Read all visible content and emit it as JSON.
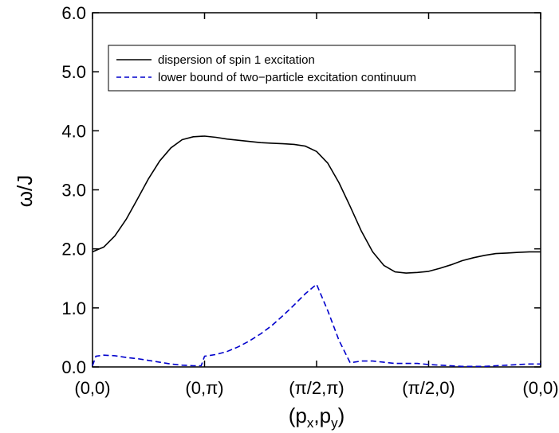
{
  "chart_data": {
    "type": "line",
    "xlabel_main": "(p",
    "xlabel_sub1": "x",
    "xlabel_mid": ",p",
    "xlabel_sub2": "y",
    "xlabel_end": ")",
    "ylabel": "ω/J",
    "x_ticks": [
      "(0,0)",
      "(0,π)",
      "(π/2,π)",
      "(π/2,0)",
      "(0,0)"
    ],
    "y_ticks": [
      "0.0",
      "1.0",
      "2.0",
      "3.0",
      "4.0",
      "5.0",
      "6.0"
    ],
    "xlim": [
      0,
      4
    ],
    "ylim": [
      0,
      6
    ],
    "legend_position": "top-left",
    "series": [
      {
        "name": "dispersion of  spin 1 excitation",
        "color": "#000000",
        "style": "solid",
        "x": [
          0,
          0.1,
          0.2,
          0.3,
          0.4,
          0.5,
          0.6,
          0.7,
          0.8,
          0.9,
          1.0,
          1.1,
          1.2,
          1.3,
          1.4,
          1.5,
          1.6,
          1.7,
          1.8,
          1.9,
          2.0,
          2.1,
          2.2,
          2.3,
          2.4,
          2.5,
          2.6,
          2.7,
          2.8,
          2.9,
          3.0,
          3.1,
          3.2,
          3.3,
          3.4,
          3.5,
          3.6,
          3.7,
          3.8,
          3.9,
          4.0
        ],
        "y": [
          1.95,
          2.03,
          2.22,
          2.5,
          2.84,
          3.19,
          3.49,
          3.71,
          3.85,
          3.9,
          3.91,
          3.89,
          3.86,
          3.84,
          3.82,
          3.8,
          3.79,
          3.78,
          3.77,
          3.74,
          3.65,
          3.45,
          3.12,
          2.72,
          2.3,
          1.95,
          1.72,
          1.61,
          1.59,
          1.6,
          1.62,
          1.67,
          1.73,
          1.8,
          1.85,
          1.89,
          1.92,
          1.93,
          1.94,
          1.95,
          1.95
        ]
      },
      {
        "name": "lower bound of two−particle excitation continuum",
        "color": "#0000cc",
        "style": "dashed",
        "x": [
          0,
          0.03,
          0.1,
          0.2,
          0.3,
          0.4,
          0.5,
          0.6,
          0.7,
          0.8,
          0.9,
          0.97,
          1.0,
          1.1,
          1.2,
          1.3,
          1.4,
          1.5,
          1.6,
          1.7,
          1.8,
          1.9,
          2.0,
          2.1,
          2.2,
          2.3,
          2.4,
          2.5,
          2.6,
          2.7,
          2.8,
          2.9,
          3.0,
          3.1,
          3.2,
          3.3,
          3.4,
          3.5,
          3.6,
          3.7,
          3.8,
          3.9,
          4.0
        ],
        "y": [
          0.02,
          0.18,
          0.2,
          0.19,
          0.16,
          0.14,
          0.11,
          0.08,
          0.05,
          0.03,
          0.02,
          0.02,
          0.18,
          0.21,
          0.26,
          0.34,
          0.44,
          0.56,
          0.7,
          0.87,
          1.05,
          1.24,
          1.4,
          0.95,
          0.45,
          0.07,
          0.1,
          0.1,
          0.08,
          0.06,
          0.06,
          0.06,
          0.04,
          0.03,
          0.02,
          0.01,
          0.01,
          0.01,
          0.02,
          0.03,
          0.04,
          0.05,
          0.05
        ]
      }
    ]
  }
}
